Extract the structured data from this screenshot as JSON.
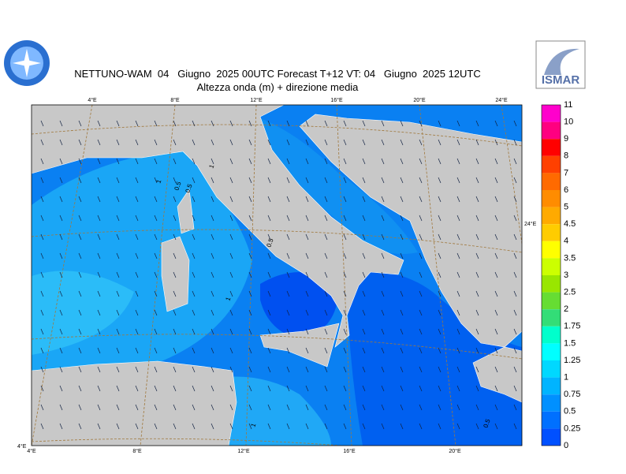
{
  "header": {
    "title_line1": "NETTUNO-WAM  04   Giugno  2025 00UTC Forecast T+12 VT: 04   Giugno  2025 12UTC",
    "title_line2": "Altezza onda (m) + direzione media",
    "logo_right": "ISMAR"
  },
  "map": {
    "top_labels": [
      "4°E",
      "8°E",
      "12°E",
      "16°E",
      "20°E",
      "24°E"
    ],
    "bottom_labels": [
      "4°E",
      "8°E",
      "12°E",
      "16°E",
      "20°E"
    ],
    "right_label": "24°E",
    "corner_label": "4°E",
    "contour_labels": [
      "1",
      "0.5",
      "1",
      "0.5",
      "1",
      "0.5",
      "1",
      "0.5"
    ]
  },
  "colorbar": {
    "labels": [
      "11",
      "10",
      "9",
      "8",
      "7",
      "6",
      "5",
      "4.5",
      "4",
      "3.5",
      "3",
      "2.5",
      "2",
      "1.75",
      "1.5",
      "1.25",
      "1",
      "0.75",
      "0.5",
      "0.25",
      "0"
    ],
    "colors": [
      "#ff00cc",
      "#ff0080",
      "#ff0000",
      "#ff4000",
      "#ff6a00",
      "#ff8c00",
      "#ffaa00",
      "#ffcc00",
      "#ffff00",
      "#ccff00",
      "#99e600",
      "#66dd33",
      "#33dd77",
      "#00ffcc",
      "#00ffff",
      "#00d8ff",
      "#00b4ff",
      "#0090ff",
      "#0070ff",
      "#0050ff"
    ]
  }
}
